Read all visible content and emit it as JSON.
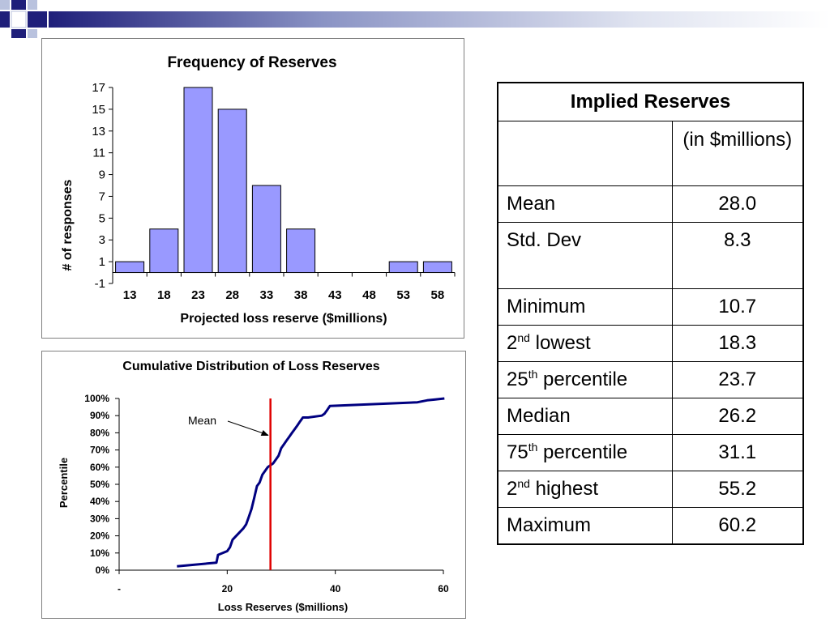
{
  "colors": {
    "bar_fill": "#9999ff",
    "cdf_line": "#000080",
    "mean_line": "#e00000",
    "decor_navy": "#1f1f7a",
    "decor_light": "#b9c2de"
  },
  "histogram": {
    "chart_data": {
      "type": "bar",
      "title": "Frequency of Reserves",
      "xlabel": "Projected loss reserve ($millions)",
      "ylabel": "# of responses",
      "categories": [
        "13",
        "18",
        "23",
        "28",
        "33",
        "38",
        "43",
        "48",
        "53",
        "58"
      ],
      "values": [
        1,
        4,
        17,
        15,
        8,
        4,
        0,
        0,
        1,
        1
      ],
      "ylim": [
        -1,
        17
      ],
      "yticks": [
        "-1",
        "1",
        "3",
        "5",
        "7",
        "9",
        "11",
        "13",
        "15",
        "17"
      ],
      "grid": false,
      "legend": "none"
    }
  },
  "cdf": {
    "chart_data": {
      "type": "line",
      "title": "Cumulative Distribution of Loss Reserves",
      "xlabel": "Loss Reserves ($millions)",
      "ylabel": "Percentile",
      "xlim": [
        0,
        60
      ],
      "ylim": [
        0,
        100
      ],
      "xticks": [
        "-",
        "20",
        "40",
        "60"
      ],
      "yticks": [
        "0%",
        "10%",
        "20%",
        "30%",
        "40%",
        "50%",
        "60%",
        "70%",
        "80%",
        "90%",
        "100%"
      ],
      "series": [
        {
          "x": [
            10.7,
            18.0,
            18.3,
            20.0,
            20.5,
            21.0,
            23.0,
            23.5,
            24.0,
            24.5,
            25.0,
            25.5,
            26.0,
            26.5,
            27.0,
            27.5,
            28.5,
            29.0,
            29.5,
            30.0,
            30.5,
            31.0,
            31.5,
            32.0,
            32.5,
            33.0,
            33.5,
            34.0,
            35.0,
            37.5,
            38.0,
            38.5,
            39.0,
            55.2,
            57.0,
            58.5,
            60.2
          ],
          "y": [
            2.2,
            4.4,
            8.9,
            11.1,
            13.3,
            17.8,
            24.4,
            26.7,
            31.1,
            35.6,
            42.2,
            48.9,
            51.1,
            55.6,
            57.8,
            60.0,
            62.2,
            64.4,
            66.7,
            71.1,
            73.3,
            75.6,
            77.8,
            80.0,
            82.2,
            84.4,
            86.7,
            88.9,
            88.9,
            90.0,
            91.1,
            93.3,
            95.6,
            97.8,
            98.9,
            99.4,
            100
          ]
        }
      ],
      "annotation": {
        "text": "Mean",
        "x": 28.0
      },
      "grid": false,
      "legend": "none"
    }
  },
  "table": {
    "title": "Implied Reserves",
    "units": "(in $millions)",
    "rows": [
      {
        "base": "Mean",
        "sup": "",
        "rest": "",
        "value": "28.0"
      },
      {
        "base": "Std. Dev",
        "sup": "",
        "rest": "",
        "value": "8.3"
      },
      {
        "base": "Minimum",
        "sup": "",
        "rest": "",
        "value": "10.7"
      },
      {
        "base": "2",
        "sup": "nd",
        "rest": " lowest",
        "value": "18.3"
      },
      {
        "base": "25",
        "sup": "th",
        "rest": " percentile",
        "value": "23.7"
      },
      {
        "base": "Median",
        "sup": "",
        "rest": "",
        "value": "26.2"
      },
      {
        "base": "75",
        "sup": "th",
        "rest": " percentile",
        "value": "31.1"
      },
      {
        "base": "2",
        "sup": "nd",
        "rest": " highest",
        "value": "55.2"
      },
      {
        "base": "Maximum",
        "sup": "",
        "rest": "",
        "value": "60.2"
      }
    ]
  }
}
